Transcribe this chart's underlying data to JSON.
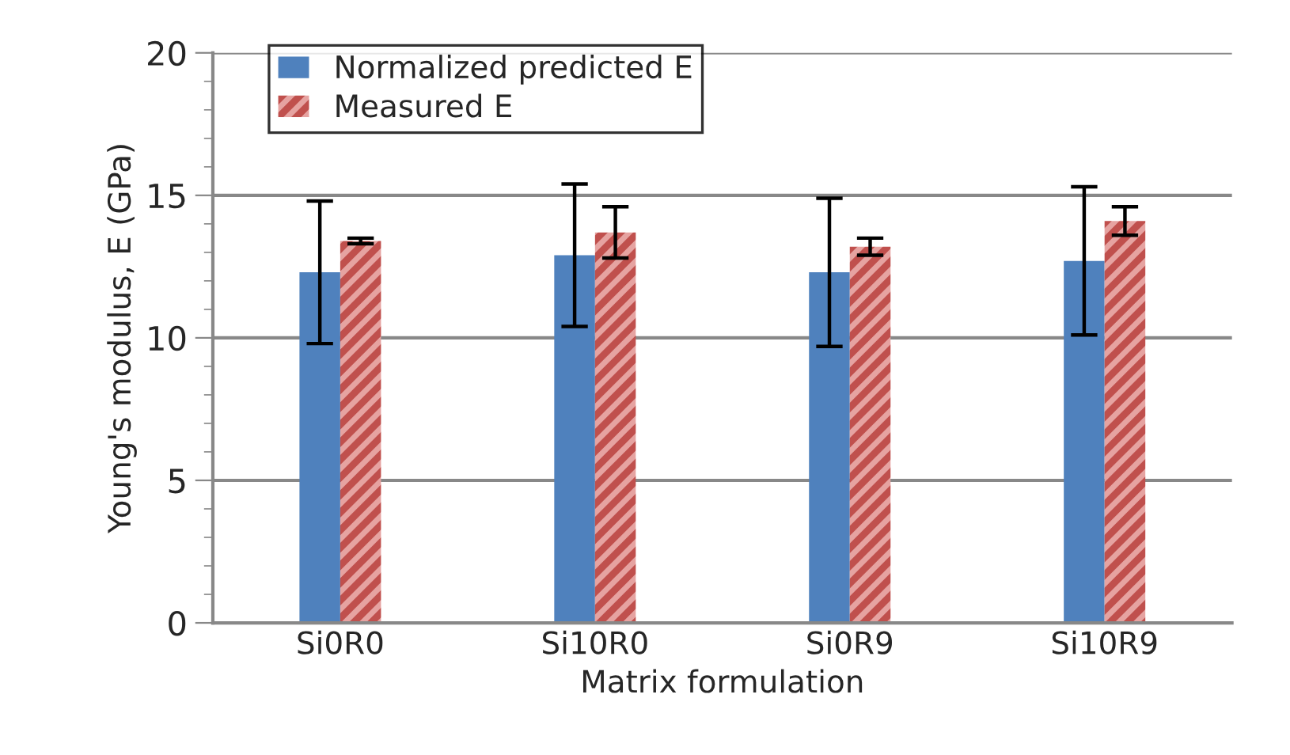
{
  "chart_data": {
    "type": "bar",
    "xlabel": "Matrix formulation",
    "ylabel": "Young's modulus, E (GPa)",
    "categories": [
      "Si0R0",
      "Si10R0",
      "Si0R9",
      "Si10R9"
    ],
    "series": [
      {
        "name": "Normalized predicted E",
        "color": "#4f81bd",
        "values": [
          12.3,
          12.9,
          12.3,
          12.7
        ],
        "errors": [
          2.5,
          2.5,
          2.6,
          2.6
        ]
      },
      {
        "name": "Measured E",
        "color": "#c0504d",
        "values": [
          13.4,
          13.7,
          13.2,
          14.1
        ],
        "errors": [
          0.1,
          0.9,
          0.3,
          0.5
        ]
      }
    ],
    "ylim": [
      0,
      20
    ],
    "yticks": [
      0,
      {
        "value": 1,
        "label": null
      },
      {
        "value": 2,
        "label": null
      },
      {
        "value": 3,
        "label": null
      },
      {
        "value": 4,
        "label": null
      },
      5,
      {
        "value": 6,
        "label": null
      },
      {
        "value": 7,
        "label": null
      },
      {
        "value": 8,
        "label": null
      },
      {
        "value": 9,
        "label": null
      },
      10,
      {
        "value": 11,
        "label": null
      },
      {
        "value": 12,
        "label": null
      },
      {
        "value": 13,
        "label": null
      },
      {
        "value": 14,
        "label": null
      },
      15,
      {
        "value": 16,
        "label": null
      },
      {
        "value": 17,
        "label": null
      },
      {
        "value": 18,
        "label": null
      },
      {
        "value": 19,
        "label": null
      },
      20
    ],
    "grid": "y",
    "legend": "top left"
  }
}
